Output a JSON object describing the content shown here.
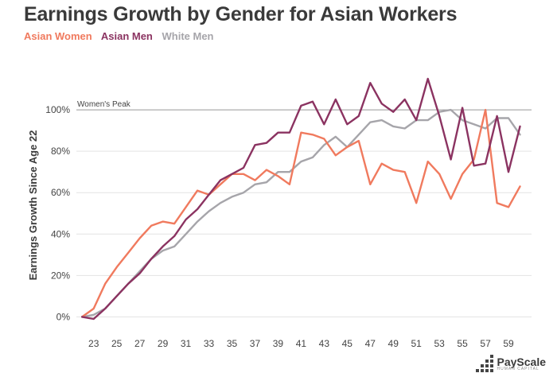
{
  "title": "Earnings Growth by Gender for Asian Workers",
  "legend": [
    {
      "label": "Asian Women",
      "color": "#f07a5e"
    },
    {
      "label": "Asian Men",
      "color": "#8b3361"
    },
    {
      "label": "White Men",
      "color": "#a6a5aa"
    }
  ],
  "brand": {
    "name": "PayScale",
    "tagline": "HUMAN CAPITAL"
  },
  "chart_data": {
    "type": "line",
    "ylabel": "Earnings Growth Since Age 22",
    "xlabel": "",
    "ylim": [
      -6,
      120
    ],
    "yticks": [
      0,
      20,
      40,
      60,
      80,
      100
    ],
    "ytick_labels": [
      "0%",
      "20%",
      "40%",
      "60%",
      "80%",
      "100%"
    ],
    "xticks": [
      23,
      25,
      27,
      29,
      31,
      33,
      35,
      37,
      39,
      41,
      43,
      45,
      47,
      49,
      51,
      53,
      55,
      57,
      59
    ],
    "xlim": [
      21.5,
      61
    ],
    "reference_line": {
      "value": 100,
      "label": "Women's Peak"
    },
    "series": [
      {
        "name": "White Men",
        "color": "#a6a5aa",
        "x": [
          22,
          23,
          24,
          25,
          26,
          27,
          28,
          29,
          30,
          31,
          32,
          33,
          34,
          35,
          36,
          37,
          38,
          39,
          40,
          41,
          42,
          43,
          44,
          45,
          46,
          47,
          48,
          49,
          50,
          51,
          52,
          53,
          54,
          55,
          56,
          57,
          58,
          59,
          60
        ],
        "values": [
          0,
          1,
          4,
          10,
          16,
          22,
          28,
          32,
          34,
          40,
          46,
          51,
          55,
          58,
          60,
          64,
          65,
          70,
          70,
          75,
          77,
          83,
          87,
          82,
          88,
          94,
          95,
          92,
          91,
          95,
          95,
          99,
          100,
          95,
          93,
          91,
          96,
          96,
          88
        ]
      },
      {
        "name": "Asian Women",
        "color": "#f07a5e",
        "x": [
          22,
          23,
          24,
          25,
          26,
          27,
          28,
          29,
          30,
          31,
          32,
          33,
          34,
          35,
          36,
          37,
          38,
          39,
          40,
          41,
          42,
          43,
          44,
          45,
          46,
          47,
          48,
          49,
          50,
          51,
          52,
          53,
          54,
          55,
          56,
          57,
          58,
          59,
          60
        ],
        "values": [
          0,
          4,
          16,
          24,
          31,
          38,
          44,
          46,
          45,
          53,
          61,
          59,
          64,
          69,
          69,
          66,
          71,
          68,
          64,
          89,
          88,
          86,
          78,
          82,
          85,
          64,
          74,
          71,
          70,
          55,
          75,
          69,
          57,
          69,
          76,
          100,
          55,
          53,
          63
        ]
      },
      {
        "name": "Asian Men",
        "color": "#8b3361",
        "x": [
          22,
          23,
          24,
          25,
          26,
          27,
          28,
          29,
          30,
          31,
          32,
          33,
          34,
          35,
          36,
          37,
          38,
          39,
          40,
          41,
          42,
          43,
          44,
          45,
          46,
          47,
          48,
          49,
          50,
          51,
          52,
          53,
          54,
          55,
          56,
          57,
          58,
          59,
          60
        ],
        "values": [
          0,
          -1,
          4,
          10,
          16,
          21,
          28,
          34,
          39,
          47,
          52,
          59,
          66,
          69,
          72,
          83,
          84,
          89,
          89,
          102,
          104,
          93,
          105,
          93,
          97,
          113,
          103,
          99,
          105,
          95,
          115,
          97,
          76,
          101,
          73,
          74,
          97,
          70,
          92
        ]
      }
    ]
  }
}
